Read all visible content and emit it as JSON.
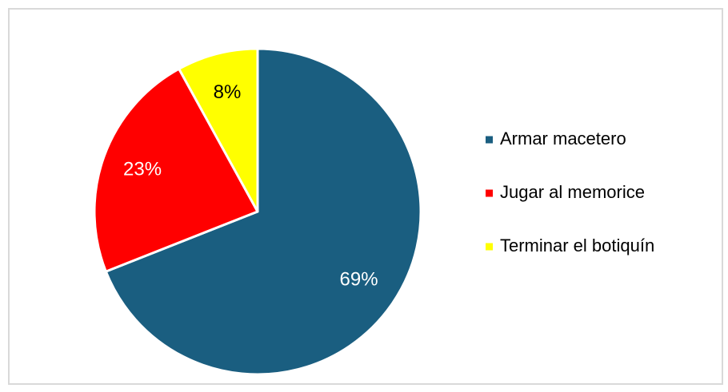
{
  "chart_data": {
    "type": "pie",
    "categories": [
      "Armar macetero",
      "Jugar al memorice",
      "Terminar el botiquín"
    ],
    "values": [
      69,
      23,
      8
    ],
    "value_labels": [
      "69%",
      "23%",
      "8%"
    ],
    "colors": [
      "#1a5e80",
      "#ff0000",
      "#ffff00"
    ],
    "legend": "right"
  }
}
